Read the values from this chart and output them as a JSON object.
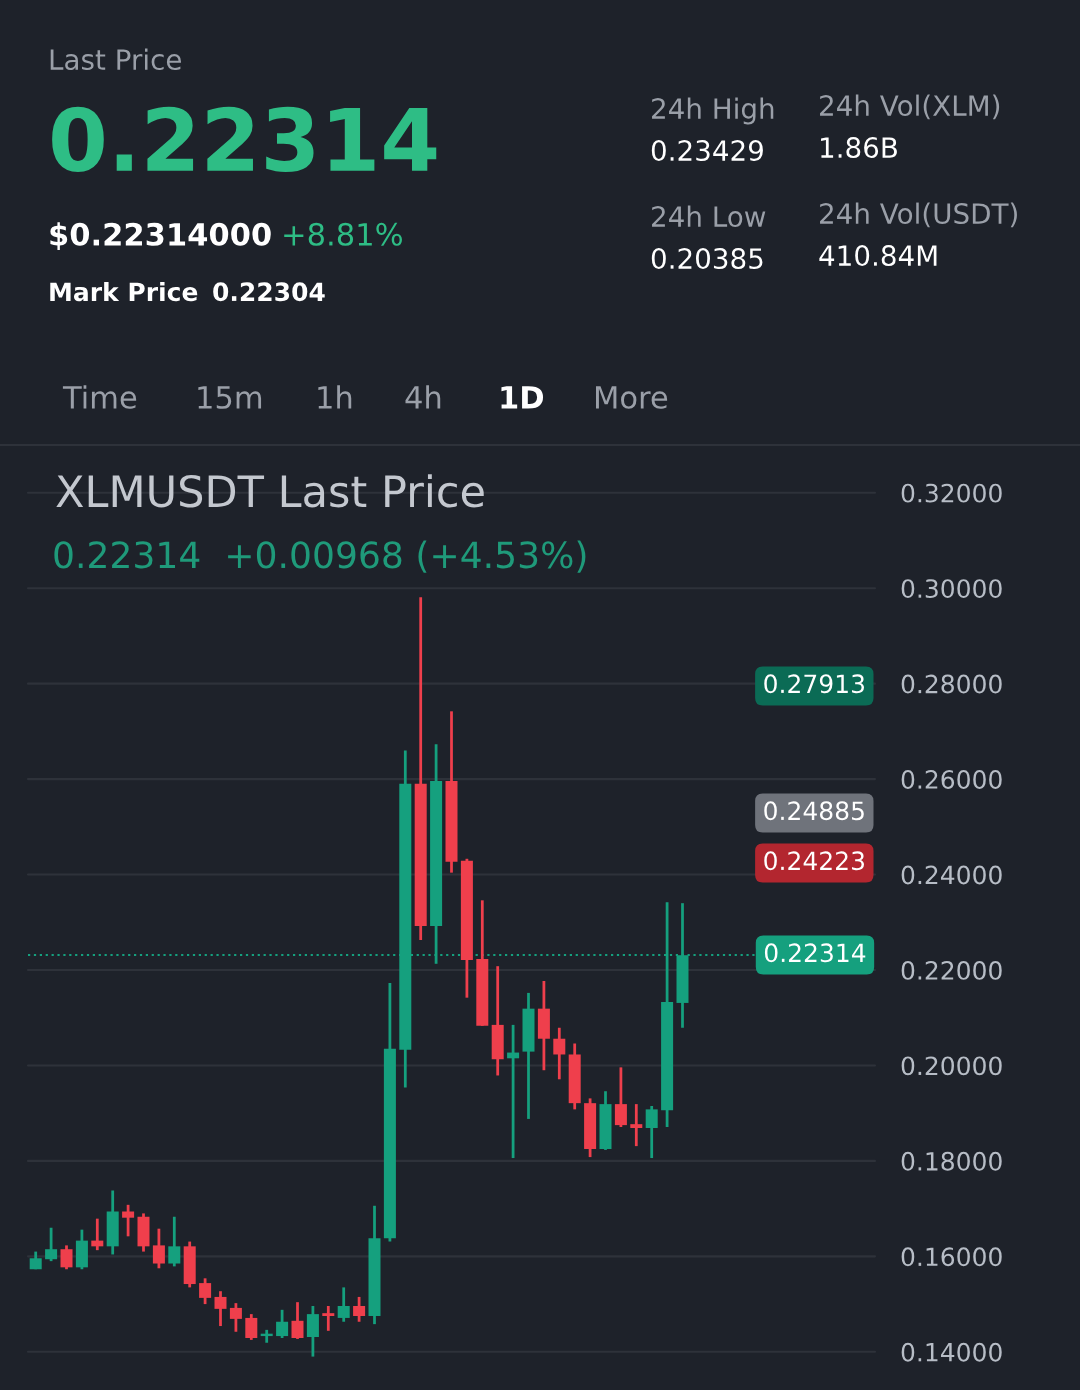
{
  "chart_data": {
    "type": "candlestick",
    "title": "XLMUSDT Last Price",
    "subtitle": "0.22314  +0.00968 (+4.53%)",
    "annotations": [
      "0.27913",
      "0.24885",
      "0.24223",
      "Last Price",
      "0.22314",
      "$0.22314000",
      "+8.81%",
      "Mark Price",
      "0.22304",
      "24h High",
      "0.23429",
      "24h Low",
      "0.20385",
      "24h Vol(XLM)",
      "1.86B",
      "24h Vol(USDT)",
      "410.84M",
      "Time",
      "15m",
      "1h",
      "4h",
      "1D",
      "More"
    ],
    "categories": [
      null,
      null,
      null,
      null,
      null,
      null,
      null,
      null,
      null,
      null,
      null,
      null,
      null,
      null,
      null,
      null,
      null,
      null,
      null,
      null,
      null,
      null,
      null,
      null,
      null,
      null,
      null,
      null,
      null,
      null,
      null,
      null,
      null,
      null,
      null,
      null,
      null,
      null,
      null,
      null,
      null,
      null,
      null,
      null,
      null,
      null,
      null,
      null,
      null,
      null,
      null,
      null,
      null,
      null,
      null
    ],
    "ohlc": [
      [
        0.1573,
        0.161,
        0.1573,
        0.1596
      ],
      [
        0.1594,
        0.166,
        0.159,
        0.1615
      ],
      [
        0.1615,
        0.1623,
        0.1573,
        0.1577
      ],
      [
        0.1577,
        0.1656,
        0.1573,
        0.1633
      ],
      [
        0.1633,
        0.1679,
        0.1613,
        0.1621
      ],
      [
        0.1621,
        0.1738,
        0.1604,
        0.1694
      ],
      [
        0.1694,
        0.1708,
        0.1642,
        0.1681
      ],
      [
        0.1683,
        0.169,
        0.161,
        0.1621
      ],
      [
        0.1623,
        0.1658,
        0.1575,
        0.1585
      ],
      [
        0.1585,
        0.1683,
        0.1579,
        0.1621
      ],
      [
        0.1621,
        0.1631,
        0.1535,
        0.1542
      ],
      [
        0.1544,
        0.1554,
        0.15,
        0.1513
      ],
      [
        0.1515,
        0.1527,
        0.1454,
        0.149
      ],
      [
        0.1492,
        0.1502,
        0.1442,
        0.1469
      ],
      [
        0.1471,
        0.1479,
        0.1425,
        0.1429
      ],
      [
        0.1433,
        0.1446,
        0.1419,
        0.1438
      ],
      [
        0.1433,
        0.1488,
        0.1429,
        0.1463
      ],
      [
        0.1465,
        0.1504,
        0.1427,
        0.1429
      ],
      [
        0.1431,
        0.1496,
        0.139,
        0.1479
      ],
      [
        0.1481,
        0.1496,
        0.1444,
        0.1475
      ],
      [
        0.1471,
        0.1535,
        0.1463,
        0.1496
      ],
      [
        0.1496,
        0.1515,
        0.1463,
        0.1475
      ],
      [
        0.1475,
        0.1706,
        0.1458,
        0.1638
      ],
      [
        0.1638,
        0.2173,
        0.1631,
        0.2035
      ],
      [
        0.2033,
        0.266,
        0.1954,
        0.259
      ],
      [
        0.259,
        0.2981,
        0.2263,
        0.2292
      ],
      [
        0.2292,
        0.2673,
        0.2213,
        0.2596
      ],
      [
        0.2596,
        0.2742,
        0.2404,
        0.2427
      ],
      [
        0.2429,
        0.2433,
        0.2142,
        0.2221
      ],
      [
        0.2223,
        0.2346,
        0.2083,
        0.2083
      ],
      [
        0.2085,
        0.2208,
        0.1979,
        0.2013
      ],
      [
        0.2015,
        0.2085,
        0.1806,
        0.2027
      ],
      [
        0.2029,
        0.2152,
        0.1888,
        0.2119
      ],
      [
        0.2119,
        0.2177,
        0.199,
        0.2056
      ],
      [
        0.2056,
        0.2079,
        0.1971,
        0.2023
      ],
      [
        0.2023,
        0.2046,
        0.1908,
        0.1921
      ],
      [
        0.1921,
        0.1931,
        0.1808,
        0.1825
      ],
      [
        0.1825,
        0.1946,
        0.1823,
        0.1919
      ],
      [
        0.1919,
        0.1996,
        0.1871,
        0.1875
      ],
      [
        0.1877,
        0.1919,
        0.1831,
        0.1869
      ],
      [
        0.1869,
        0.1915,
        0.1806,
        0.1908
      ],
      [
        0.1906,
        0.2342,
        0.1871,
        0.2133
      ],
      [
        0.2131,
        0.234,
        0.2079,
        0.2231
      ],
      null,
      null,
      null,
      null,
      null,
      null,
      null,
      null,
      null,
      null,
      null,
      null
    ],
    "colors": [
      "#15a07e",
      "#15a07e",
      "#ef3f4c",
      "#15a07e",
      "#ef3f4c",
      "#15a07e",
      "#ef3f4c",
      "#ef3f4c",
      "#ef3f4c",
      "#15a07e",
      "#ef3f4c",
      "#ef3f4c",
      "#ef3f4c",
      "#ef3f4c",
      "#ef3f4c",
      "#15a07e",
      "#15a07e",
      "#ef3f4c",
      "#15a07e",
      "#ef3f4c",
      "#15a07e",
      "#ef3f4c",
      "#15a07e",
      "#15a07e",
      "#15a07e",
      "#ef3f4c",
      "#15a07e",
      "#ef3f4c",
      "#ef3f4c",
      "#ef3f4c",
      "#ef3f4c",
      "#15a07e",
      "#15a07e",
      "#ef3f4c",
      "#ef3f4c",
      "#ef3f4c",
      "#ef3f4c",
      "#15a07e",
      "#ef3f4c",
      "#ef3f4c",
      "#15a07e",
      "#15a07e",
      "#15a07e",
      null,
      null,
      null,
      null,
      null,
      null,
      null,
      null,
      null,
      null,
      null,
      null
    ],
    "ylim": [
      0.132,
      0.33
    ],
    "yticks": [
      {
        "value": 0.14,
        "label": "0.14000"
      },
      {
        "value": 0.16,
        "label": "0.16000"
      },
      {
        "value": 0.18,
        "label": "0.18000"
      },
      {
        "value": 0.2,
        "label": "0.20000"
      },
      {
        "value": 0.22,
        "label": "0.22000"
      },
      {
        "value": 0.24,
        "label": "0.24000"
      },
      {
        "value": 0.26,
        "label": "0.26000"
      },
      {
        "value": 0.28,
        "label": "0.28000"
      },
      {
        "value": 0.3,
        "label": "0.30000"
      },
      {
        "value": 0.32,
        "label": "0.32000"
      }
    ],
    "ref_lines": [
      {
        "axis": "y",
        "value": 0.22314,
        "label": "0.22314",
        "color": "#15a07e",
        "line_style": "dotted"
      }
    ],
    "grid": "y",
    "tick_labels": "y",
    "legend": false
  }
}
